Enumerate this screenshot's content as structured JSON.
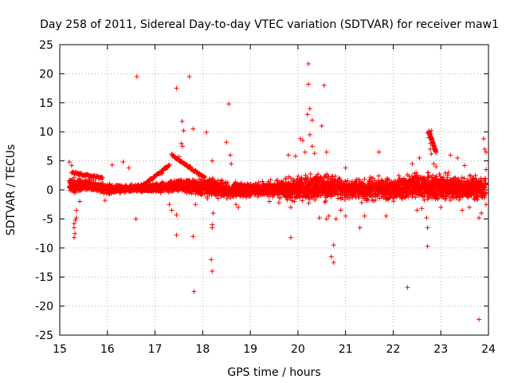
{
  "chart_data": {
    "type": "scatter",
    "title": "Day 258 of 2011, Sidereal Day-to-day VTEC variation (SDTVAR) for receiver maw1",
    "xlabel": "GPS time / hours",
    "ylabel": "SDTVAR / TECUs",
    "xlim": [
      15,
      24
    ],
    "ylim": [
      -25,
      25
    ],
    "xticks": [
      15,
      16,
      17,
      18,
      19,
      20,
      21,
      22,
      23,
      24
    ],
    "yticks": [
      -25,
      -20,
      -15,
      -10,
      -5,
      0,
      5,
      10,
      15,
      20,
      25
    ],
    "xtick_labels": [
      "15",
      "16",
      "17",
      "18",
      "19",
      "20",
      "21",
      "22",
      "23",
      "24"
    ],
    "ytick_labels": [
      "-25",
      "-20",
      "-15",
      "-10",
      "-5",
      "0",
      "5",
      "10",
      "15",
      "20",
      "25"
    ],
    "grid": true,
    "marker": "+",
    "color": "#ff0000",
    "series": [
      {
        "name": "maw1",
        "band_x": [
          15.2,
          15.6,
          16.0,
          16.5,
          17.0,
          17.5,
          18.0,
          18.5,
          19.0,
          19.5,
          20.0,
          20.5,
          21.0,
          21.5,
          22.0,
          22.5,
          23.0,
          23.5,
          23.95
        ],
        "band_lo": [
          -0.8,
          -0.5,
          -1.0,
          -0.5,
          -0.8,
          -0.6,
          -1.5,
          -2.0,
          -1.5,
          -1.5,
          -2.5,
          -2.5,
          -2.0,
          -2.5,
          -2.5,
          -2.0,
          -2.5,
          -2.5,
          -2.5
        ],
        "band_hi": [
          2.5,
          2.0,
          1.2,
          1.0,
          1.5,
          2.0,
          2.5,
          2.0,
          1.5,
          1.8,
          3.0,
          3.5,
          2.5,
          2.5,
          3.0,
          3.5,
          3.5,
          3.0,
          3.0
        ],
        "outliers": [
          [
            15.2,
            4.8
          ],
          [
            15.25,
            4.2
          ],
          [
            15.3,
            -8.2
          ],
          [
            15.32,
            -7.5
          ],
          [
            15.3,
            -6.5
          ],
          [
            15.3,
            -5.8
          ],
          [
            15.35,
            -4.8
          ],
          [
            15.35,
            -3.5
          ],
          [
            15.33,
            -5.2
          ],
          [
            15.42,
            -2.0
          ],
          [
            15.95,
            -1.8
          ],
          [
            16.1,
            4.3
          ],
          [
            16.33,
            4.8
          ],
          [
            16.45,
            3.8
          ],
          [
            16.6,
            -5.0
          ],
          [
            16.62,
            19.5
          ],
          [
            17.15,
            2.8
          ],
          [
            17.25,
            3.8
          ],
          [
            17.3,
            -2.5
          ],
          [
            17.35,
            -3.5
          ],
          [
            17.45,
            17.5
          ],
          [
            17.45,
            -4.3
          ],
          [
            17.45,
            -7.8
          ],
          [
            17.5,
            5.7
          ],
          [
            17.55,
            8.0
          ],
          [
            17.57,
            11.8
          ],
          [
            17.58,
            7.5
          ],
          [
            17.6,
            10.2
          ],
          [
            17.72,
            19.5
          ],
          [
            17.75,
            4.0
          ],
          [
            17.8,
            10.5
          ],
          [
            17.8,
            -8.0
          ],
          [
            17.82,
            -17.5
          ],
          [
            17.85,
            -2.5
          ],
          [
            18.08,
            9.9
          ],
          [
            18.18,
            -12.0
          ],
          [
            18.2,
            -14.0
          ],
          [
            18.2,
            -6.5
          ],
          [
            18.2,
            -6.0
          ],
          [
            18.2,
            5.0
          ],
          [
            18.22,
            -4.0
          ],
          [
            18.1,
            -1.5
          ],
          [
            18.5,
            8.2
          ],
          [
            18.55,
            14.8
          ],
          [
            18.6,
            4.5
          ],
          [
            18.58,
            6.0
          ],
          [
            18.7,
            -2.5
          ],
          [
            18.75,
            -3.0
          ],
          [
            19.4,
            -2.0
          ],
          [
            19.6,
            -2.2
          ],
          [
            19.8,
            6.0
          ],
          [
            19.85,
            -8.2
          ],
          [
            19.85,
            -3.0
          ],
          [
            19.95,
            5.8
          ],
          [
            20.05,
            8.8
          ],
          [
            20.1,
            8.5
          ],
          [
            20.15,
            6.5
          ],
          [
            20.2,
            13.0
          ],
          [
            20.22,
            21.7
          ],
          [
            20.22,
            18.2
          ],
          [
            20.25,
            14.0
          ],
          [
            20.25,
            9.5
          ],
          [
            20.3,
            12.0
          ],
          [
            20.3,
            7.5
          ],
          [
            20.35,
            6.3
          ],
          [
            20.45,
            -4.8
          ],
          [
            20.5,
            11.0
          ],
          [
            20.55,
            18.0
          ],
          [
            20.6,
            6.5
          ],
          [
            20.6,
            -5.0
          ],
          [
            20.65,
            -4.5
          ],
          [
            20.7,
            -11.5
          ],
          [
            20.75,
            -12.5
          ],
          [
            20.75,
            -9.5
          ],
          [
            20.8,
            -5.0
          ],
          [
            20.9,
            -3.5
          ],
          [
            21.0,
            -4.5
          ],
          [
            21.0,
            3.8
          ],
          [
            21.3,
            -6.5
          ],
          [
            21.4,
            -4.5
          ],
          [
            21.7,
            6.5
          ],
          [
            21.85,
            -4.5
          ],
          [
            22.3,
            -16.8
          ],
          [
            22.4,
            4.5
          ],
          [
            22.5,
            -3.5
          ],
          [
            22.55,
            5.5
          ],
          [
            22.6,
            -3.2
          ],
          [
            22.7,
            -4.8
          ],
          [
            22.72,
            -9.7
          ],
          [
            22.72,
            -6.5
          ],
          [
            22.72,
            9.8
          ],
          [
            22.75,
            9.0
          ],
          [
            22.78,
            8.0
          ],
          [
            22.78,
            7.0
          ],
          [
            22.8,
            6.2
          ],
          [
            22.8,
            10.2
          ],
          [
            22.85,
            4.5
          ],
          [
            22.9,
            4.0
          ],
          [
            23.0,
            -3.0
          ],
          [
            23.2,
            6.0
          ],
          [
            23.35,
            5.5
          ],
          [
            23.45,
            -3.5
          ],
          [
            23.5,
            4.2
          ],
          [
            23.6,
            -3.0
          ],
          [
            23.8,
            -22.3
          ],
          [
            23.8,
            -4.8
          ],
          [
            23.85,
            -4.0
          ],
          [
            23.9,
            8.8
          ],
          [
            23.92,
            7.0
          ],
          [
            23.95,
            6.5
          ],
          [
            23.95,
            3.5
          ],
          [
            23.95,
            -2.5
          ]
        ],
        "arcs": [
          {
            "x_from": 16.7,
            "x_to": 17.3,
            "y_from": 0.5,
            "y_to": 4.2
          },
          {
            "x_from": 17.35,
            "x_to": 18.05,
            "y_from": 6.0,
            "y_to": 2.0
          },
          {
            "x_from": 15.25,
            "x_to": 15.9,
            "y_from": 3.0,
            "y_to": 2.0
          },
          {
            "x_from": 22.75,
            "x_to": 22.9,
            "y_from": 10.0,
            "y_to": 6.5
          }
        ]
      }
    ]
  }
}
